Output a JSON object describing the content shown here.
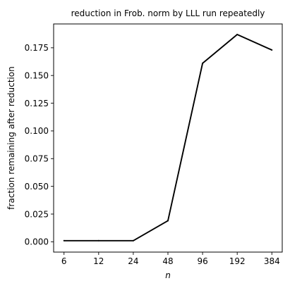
{
  "chart_data": {
    "type": "line",
    "title": "reduction in Frob. norm by LLL run repeatedly",
    "xlabel": "n",
    "ylabel": "fraction remaining after reduction",
    "x_scale": "log2",
    "x": [
      6,
      12,
      24,
      48,
      96,
      192,
      384
    ],
    "x_tick_labels": [
      "6",
      "12",
      "24",
      "48",
      "96",
      "192",
      "384"
    ],
    "y_ticks": [
      0.0,
      0.025,
      0.05,
      0.075,
      0.1,
      0.125,
      0.15,
      0.175
    ],
    "y_tick_labels": [
      "0.000",
      "0.025",
      "0.050",
      "0.075",
      "0.100",
      "0.125",
      "0.150",
      "0.175"
    ],
    "ylim": [
      -0.0093,
      0.1965
    ],
    "grid": false,
    "series": [
      {
        "values": [
          0.001,
          0.001,
          0.001,
          0.019,
          0.161,
          0.187,
          0.173
        ],
        "color": "#000000"
      }
    ]
  }
}
